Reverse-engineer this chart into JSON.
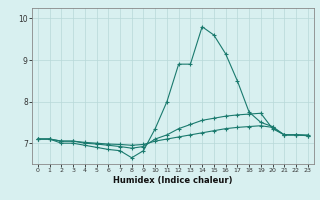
{
  "xlabel": "Humidex (Indice chaleur)",
  "ylabel": "",
  "bg_color": "#d8f0f0",
  "grid_color": "#b8d8d8",
  "line_color": "#1a7a6e",
  "xlim": [
    -0.5,
    23.5
  ],
  "ylim": [
    6.5,
    10.25
  ],
  "yticks": [
    7,
    8,
    9,
    10
  ],
  "xticks": [
    0,
    1,
    2,
    3,
    4,
    5,
    6,
    7,
    8,
    9,
    10,
    11,
    12,
    13,
    14,
    15,
    16,
    17,
    18,
    19,
    20,
    21,
    22,
    23
  ],
  "line1": [
    7.1,
    7.1,
    7.0,
    7.0,
    6.95,
    6.9,
    6.85,
    6.82,
    6.65,
    6.82,
    7.35,
    8.0,
    8.9,
    8.9,
    9.8,
    9.6,
    9.15,
    8.5,
    7.75,
    7.5,
    7.4,
    7.2,
    7.2,
    7.2
  ],
  "line2": [
    7.1,
    7.1,
    7.05,
    7.05,
    7.0,
    6.98,
    6.95,
    6.92,
    6.88,
    6.92,
    7.1,
    7.2,
    7.35,
    7.45,
    7.55,
    7.6,
    7.65,
    7.68,
    7.7,
    7.72,
    7.35,
    7.2,
    7.2,
    7.18
  ],
  "line3": [
    7.1,
    7.1,
    7.05,
    7.05,
    7.02,
    7.0,
    6.98,
    6.97,
    6.95,
    6.97,
    7.05,
    7.1,
    7.15,
    7.2,
    7.25,
    7.3,
    7.35,
    7.38,
    7.4,
    7.42,
    7.38,
    7.2,
    7.2,
    7.18
  ]
}
